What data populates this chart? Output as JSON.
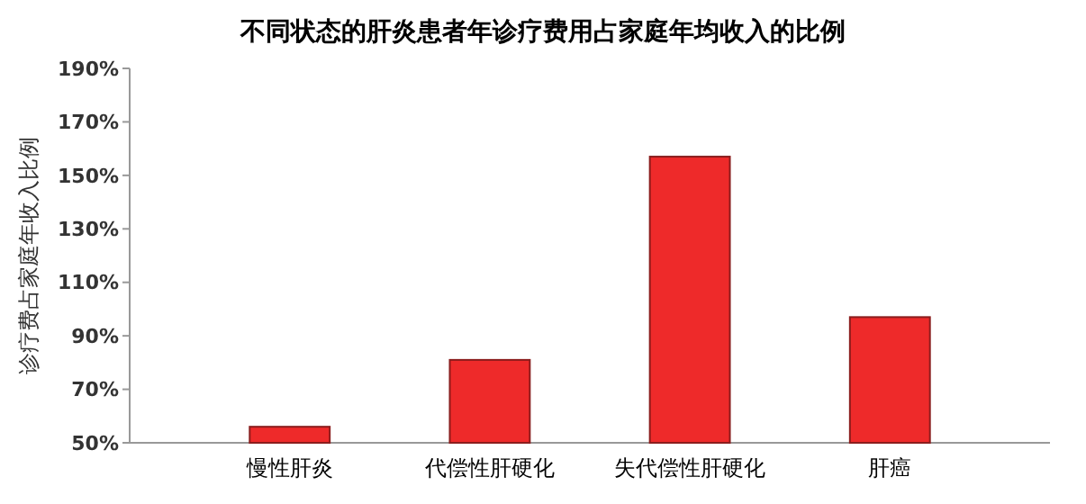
{
  "chart_data": {
    "type": "bar",
    "title": "不同状态的肝炎患者年诊疗费用占家庭年均收入的比例",
    "ylabel": "诊疗费占家庭年收入比例",
    "categories": [
      "慢性肝炎",
      "代偿性肝硬化",
      "失代偿性肝硬化",
      "肝癌"
    ],
    "values": [
      56,
      81,
      157,
      97
    ],
    "color": "#ee2a2a",
    "ylim": [
      50,
      190
    ],
    "yticks": [
      {
        "value": 50,
        "label": "50%"
      },
      {
        "value": 70,
        "label": "70%"
      },
      {
        "value": 90,
        "label": "90%"
      },
      {
        "value": 110,
        "label": "110%"
      },
      {
        "value": 130,
        "label": "130%"
      },
      {
        "value": 150,
        "label": "150%"
      },
      {
        "value": 170,
        "label": "170%"
      },
      {
        "value": 190,
        "label": "190%"
      }
    ]
  }
}
